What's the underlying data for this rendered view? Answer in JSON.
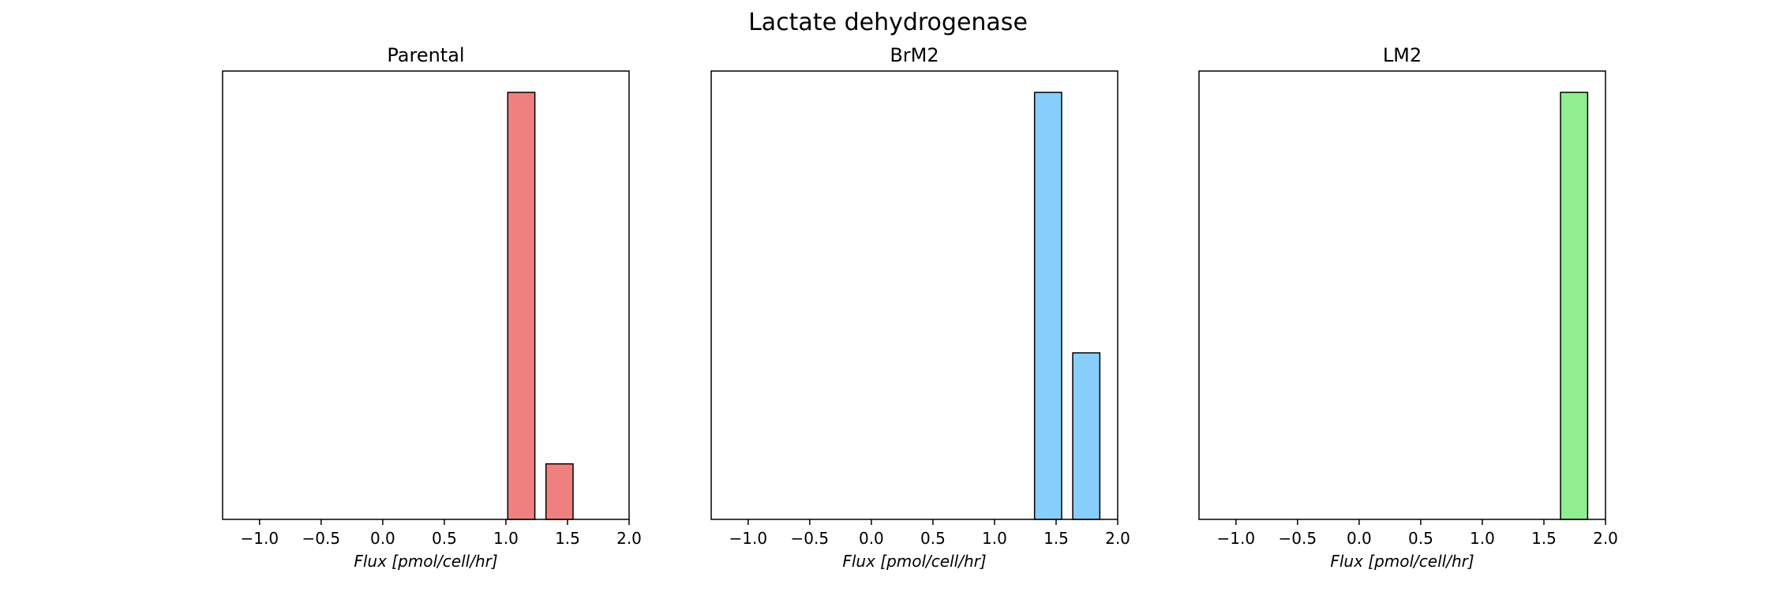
{
  "figure": {
    "title": "Lactate dehydrogenase"
  },
  "chart_data": [
    {
      "type": "bar",
      "title": "Parental",
      "xlabel": "Flux [pmol/cell/hr]",
      "ylabel": "",
      "xlim": [
        -1.3,
        2.0
      ],
      "ylim": [
        0,
        1.05
      ],
      "xticks": [
        -1.0,
        -0.5,
        0.0,
        0.5,
        1.0,
        1.5,
        2.0
      ],
      "xtick_labels": [
        "−1.0",
        "−0.5",
        "0.0",
        "0.5",
        "1.0",
        "1.5",
        "2.0"
      ],
      "bar_width": 0.22,
      "color": "#f08080",
      "bars": [
        {
          "x": 1.125,
          "value": 1.0
        },
        {
          "x": 1.435,
          "value": 0.13
        }
      ]
    },
    {
      "type": "bar",
      "title": "BrM2",
      "xlabel": "Flux [pmol/cell/hr]",
      "ylabel": "",
      "xlim": [
        -1.3,
        2.0
      ],
      "ylim": [
        0,
        1.05
      ],
      "xticks": [
        -1.0,
        -0.5,
        0.0,
        0.5,
        1.0,
        1.5,
        2.0
      ],
      "xtick_labels": [
        "−1.0",
        "−0.5",
        "0.0",
        "0.5",
        "1.0",
        "1.5",
        "2.0"
      ],
      "bar_width": 0.22,
      "color": "#87cefa",
      "bars": [
        {
          "x": 1.435,
          "value": 1.0
        },
        {
          "x": 1.745,
          "value": 0.39
        }
      ]
    },
    {
      "type": "bar",
      "title": "LM2",
      "xlabel": "Flux [pmol/cell/hr]",
      "ylabel": "",
      "xlim": [
        -1.3,
        2.0
      ],
      "ylim": [
        0,
        1.05
      ],
      "xticks": [
        -1.0,
        -0.5,
        0.0,
        0.5,
        1.0,
        1.5,
        2.0
      ],
      "xtick_labels": [
        "−1.0",
        "−0.5",
        "0.0",
        "0.5",
        "1.0",
        "1.5",
        "2.0"
      ],
      "bar_width": 0.22,
      "color": "#90ee90",
      "bars": [
        {
          "x": 1.745,
          "value": 1.0
        }
      ]
    }
  ]
}
